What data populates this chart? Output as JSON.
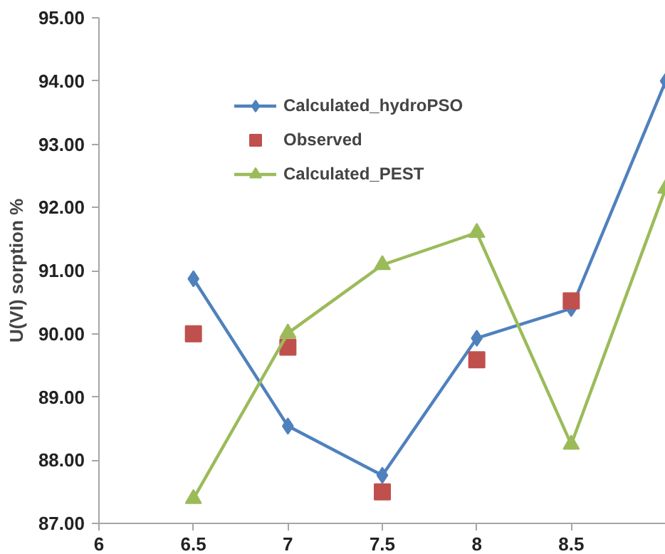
{
  "chart_data": {
    "type": "line",
    "ylabel": "U(VI) sorption %",
    "x": [
      6.5,
      7,
      7.5,
      8,
      8.5,
      9
    ],
    "xlim": [
      6,
      9
    ],
    "ylim": [
      87,
      95
    ],
    "xticks": [
      6,
      6.5,
      7,
      7.5,
      8,
      8.5
    ],
    "yticks": [
      {
        "value": 87,
        "label": "87.00"
      },
      {
        "value": 88,
        "label": "88.00"
      },
      {
        "value": 89,
        "label": "89.00"
      },
      {
        "value": 90,
        "label": "90.00"
      },
      {
        "value": 91,
        "label": "91.00"
      },
      {
        "value": 92,
        "label": "92.00"
      },
      {
        "value": 93,
        "label": "93.00"
      },
      {
        "value": 94,
        "label": "94.00"
      },
      {
        "value": 95,
        "label": "95.00"
      }
    ],
    "grid": false,
    "legend": "top left",
    "line_style": "solid",
    "series": [
      {
        "name": "Calculated_hydroPSO",
        "marker": "diamond",
        "color": "#4f81bd",
        "values": [
          90.87,
          88.54,
          87.76,
          89.93,
          90.4,
          94.0
        ]
      },
      {
        "name": "Observed",
        "type": "scatter",
        "marker": "square",
        "color": "#c0504d",
        "values": [
          90.0,
          89.79,
          87.5,
          89.59,
          90.52,
          null
        ]
      },
      {
        "name": "Calculated_PEST",
        "marker": "triangle",
        "color": "#9bbb59",
        "values": [
          87.39,
          90.01,
          91.09,
          91.6,
          88.25,
          92.3
        ]
      }
    ]
  }
}
